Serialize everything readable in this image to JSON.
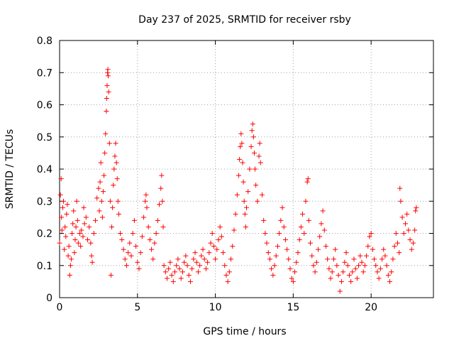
{
  "chart_data": {
    "type": "scatter",
    "title": "Day 237 of 2025, SRMTID for receiver rsby",
    "xlabel": "GPS time / hours",
    "ylabel": "SRMTID / TECUs",
    "xlim": [
      0,
      24
    ],
    "ylim": [
      0,
      0.8
    ],
    "xticks": [
      0,
      5,
      10,
      15,
      20
    ],
    "xtick_labels": [
      "0",
      "5",
      "10",
      "15",
      "20"
    ],
    "yticks": [
      0,
      0.1,
      0.2,
      0.3,
      0.4,
      0.5,
      0.6,
      0.7,
      0.8
    ],
    "ytick_labels": [
      "0",
      "0.1",
      "0.2",
      "0.3",
      "0.4",
      "0.5",
      "0.6",
      "0.7",
      "0.8"
    ],
    "grid": true,
    "marker": "+",
    "color": "#ff0000",
    "points": [
      [
        0.0,
        0.17
      ],
      [
        0.05,
        0.32
      ],
      [
        0.1,
        0.37
      ],
      [
        0.12,
        0.25
      ],
      [
        0.15,
        0.21
      ],
      [
        0.2,
        0.28
      ],
      [
        0.25,
        0.3
      ],
      [
        0.3,
        0.15
      ],
      [
        0.35,
        0.22
      ],
      [
        0.4,
        0.19
      ],
      [
        0.45,
        0.26
      ],
      [
        0.5,
        0.29
      ],
      [
        0.55,
        0.13
      ],
      [
        0.6,
        0.16
      ],
      [
        0.65,
        0.07
      ],
      [
        0.7,
        0.1
      ],
      [
        0.75,
        0.12
      ],
      [
        0.8,
        0.2
      ],
      [
        0.85,
        0.23
      ],
      [
        0.9,
        0.27
      ],
      [
        0.95,
        0.14
      ],
      [
        1.0,
        0.18
      ],
      [
        1.05,
        0.22
      ],
      [
        1.1,
        0.3
      ],
      [
        1.15,
        0.24
      ],
      [
        1.2,
        0.17
      ],
      [
        1.3,
        0.2
      ],
      [
        1.35,
        0.16
      ],
      [
        1.4,
        0.21
      ],
      [
        1.5,
        0.19
      ],
      [
        1.55,
        0.28
      ],
      [
        1.6,
        0.23
      ],
      [
        1.7,
        0.25
      ],
      [
        1.8,
        0.18
      ],
      [
        1.9,
        0.22
      ],
      [
        2.0,
        0.17
      ],
      [
        2.05,
        0.13
      ],
      [
        2.1,
        0.11
      ],
      [
        2.2,
        0.2
      ],
      [
        2.3,
        0.24
      ],
      [
        2.4,
        0.31
      ],
      [
        2.5,
        0.34
      ],
      [
        2.55,
        0.27
      ],
      [
        2.6,
        0.36
      ],
      [
        2.65,
        0.42
      ],
      [
        2.7,
        0.3
      ],
      [
        2.75,
        0.25
      ],
      [
        2.8,
        0.33
      ],
      [
        2.85,
        0.38
      ],
      [
        2.9,
        0.45
      ],
      [
        2.95,
        0.51
      ],
      [
        3.0,
        0.58
      ],
      [
        3.02,
        0.62
      ],
      [
        3.05,
        0.66
      ],
      [
        3.08,
        0.7
      ],
      [
        3.1,
        0.71
      ],
      [
        3.12,
        0.69
      ],
      [
        3.15,
        0.64
      ],
      [
        3.2,
        0.48
      ],
      [
        3.25,
        0.3
      ],
      [
        3.3,
        0.07
      ],
      [
        3.35,
        0.22
      ],
      [
        3.4,
        0.28
      ],
      [
        3.45,
        0.35
      ],
      [
        3.5,
        0.4
      ],
      [
        3.55,
        0.44
      ],
      [
        3.6,
        0.48
      ],
      [
        3.65,
        0.42
      ],
      [
        3.7,
        0.37
      ],
      [
        3.75,
        0.3
      ],
      [
        3.8,
        0.26
      ],
      [
        3.9,
        0.2
      ],
      [
        4.0,
        0.18
      ],
      [
        4.1,
        0.15
      ],
      [
        4.2,
        0.12
      ],
      [
        4.3,
        0.1
      ],
      [
        4.4,
        0.14
      ],
      [
        4.5,
        0.17
      ],
      [
        4.6,
        0.13
      ],
      [
        4.7,
        0.2
      ],
      [
        4.8,
        0.24
      ],
      [
        4.9,
        0.16
      ],
      [
        5.0,
        0.11
      ],
      [
        5.1,
        0.09
      ],
      [
        5.2,
        0.14
      ],
      [
        5.3,
        0.19
      ],
      [
        5.4,
        0.25
      ],
      [
        5.5,
        0.3
      ],
      [
        5.55,
        0.32
      ],
      [
        5.6,
        0.28
      ],
      [
        5.7,
        0.22
      ],
      [
        5.8,
        0.18
      ],
      [
        5.9,
        0.15
      ],
      [
        6.0,
        0.12
      ],
      [
        6.1,
        0.17
      ],
      [
        6.2,
        0.2
      ],
      [
        6.3,
        0.24
      ],
      [
        6.4,
        0.29
      ],
      [
        6.5,
        0.34
      ],
      [
        6.55,
        0.38
      ],
      [
        6.6,
        0.3
      ],
      [
        6.65,
        0.22
      ],
      [
        6.7,
        0.1
      ],
      [
        6.8,
        0.08
      ],
      [
        6.9,
        0.06
      ],
      [
        7.0,
        0.09
      ],
      [
        7.1,
        0.11
      ],
      [
        7.2,
        0.07
      ],
      [
        7.3,
        0.05
      ],
      [
        7.4,
        0.08
      ],
      [
        7.5,
        0.1
      ],
      [
        7.6,
        0.12
      ],
      [
        7.7,
        0.09
      ],
      [
        7.8,
        0.06
      ],
      [
        7.9,
        0.08
      ],
      [
        8.0,
        0.11
      ],
      [
        8.1,
        0.13
      ],
      [
        8.2,
        0.1
      ],
      [
        8.3,
        0.07
      ],
      [
        8.4,
        0.05
      ],
      [
        8.5,
        0.09
      ],
      [
        8.6,
        0.12
      ],
      [
        8.7,
        0.14
      ],
      [
        8.8,
        0.11
      ],
      [
        8.9,
        0.08
      ],
      [
        9.0,
        0.1
      ],
      [
        9.1,
        0.13
      ],
      [
        9.2,
        0.15
      ],
      [
        9.3,
        0.12
      ],
      [
        9.4,
        0.09
      ],
      [
        9.5,
        0.11
      ],
      [
        9.6,
        0.14
      ],
      [
        9.7,
        0.17
      ],
      [
        9.8,
        0.2
      ],
      [
        9.9,
        0.16
      ],
      [
        10.0,
        0.12
      ],
      [
        10.1,
        0.15
      ],
      [
        10.2,
        0.18
      ],
      [
        10.3,
        0.22
      ],
      [
        10.4,
        0.19
      ],
      [
        10.5,
        0.14
      ],
      [
        10.6,
        0.1
      ],
      [
        10.7,
        0.07
      ],
      [
        10.8,
        0.05
      ],
      [
        10.9,
        0.08
      ],
      [
        11.0,
        0.12
      ],
      [
        11.1,
        0.16
      ],
      [
        11.2,
        0.21
      ],
      [
        11.3,
        0.26
      ],
      [
        11.4,
        0.32
      ],
      [
        11.5,
        0.38
      ],
      [
        11.55,
        0.43
      ],
      [
        11.6,
        0.47
      ],
      [
        11.65,
        0.51
      ],
      [
        11.7,
        0.48
      ],
      [
        11.75,
        0.42
      ],
      [
        11.8,
        0.36
      ],
      [
        11.85,
        0.3
      ],
      [
        11.9,
        0.26
      ],
      [
        11.95,
        0.22
      ],
      [
        12.0,
        0.28
      ],
      [
        12.1,
        0.33
      ],
      [
        12.2,
        0.4
      ],
      [
        12.3,
        0.47
      ],
      [
        12.35,
        0.52
      ],
      [
        12.4,
        0.54
      ],
      [
        12.45,
        0.5
      ],
      [
        12.5,
        0.45
      ],
      [
        12.55,
        0.4
      ],
      [
        12.6,
        0.35
      ],
      [
        12.7,
        0.3
      ],
      [
        12.8,
        0.44
      ],
      [
        12.85,
        0.48
      ],
      [
        12.9,
        0.42
      ],
      [
        13.0,
        0.32
      ],
      [
        13.1,
        0.24
      ],
      [
        13.2,
        0.2
      ],
      [
        13.3,
        0.17
      ],
      [
        13.4,
        0.14
      ],
      [
        13.5,
        0.12
      ],
      [
        13.6,
        0.09
      ],
      [
        13.7,
        0.07
      ],
      [
        13.8,
        0.1
      ],
      [
        13.9,
        0.13
      ],
      [
        14.0,
        0.16
      ],
      [
        14.1,
        0.2
      ],
      [
        14.2,
        0.24
      ],
      [
        14.3,
        0.28
      ],
      [
        14.4,
        0.22
      ],
      [
        14.5,
        0.18
      ],
      [
        14.6,
        0.15
      ],
      [
        14.7,
        0.12
      ],
      [
        14.8,
        0.09
      ],
      [
        14.9,
        0.06
      ],
      [
        15.0,
        0.05
      ],
      [
        15.1,
        0.08
      ],
      [
        15.2,
        0.11
      ],
      [
        15.3,
        0.14
      ],
      [
        15.4,
        0.18
      ],
      [
        15.5,
        0.22
      ],
      [
        15.6,
        0.26
      ],
      [
        15.7,
        0.2
      ],
      [
        15.8,
        0.3
      ],
      [
        15.9,
        0.36
      ],
      [
        15.95,
        0.37
      ],
      [
        16.0,
        0.24
      ],
      [
        16.1,
        0.17
      ],
      [
        16.2,
        0.13
      ],
      [
        16.3,
        0.1
      ],
      [
        16.4,
        0.08
      ],
      [
        16.5,
        0.11
      ],
      [
        16.6,
        0.15
      ],
      [
        16.7,
        0.19
      ],
      [
        16.8,
        0.23
      ],
      [
        16.9,
        0.27
      ],
      [
        17.0,
        0.21
      ],
      [
        17.1,
        0.16
      ],
      [
        17.2,
        0.12
      ],
      [
        17.3,
        0.09
      ],
      [
        17.4,
        0.06
      ],
      [
        17.5,
        0.08
      ],
      [
        17.6,
        0.12
      ],
      [
        17.7,
        0.15
      ],
      [
        17.8,
        0.1
      ],
      [
        17.9,
        0.07
      ],
      [
        18.0,
        0.02
      ],
      [
        18.1,
        0.05
      ],
      [
        18.2,
        0.08
      ],
      [
        18.3,
        0.11
      ],
      [
        18.4,
        0.14
      ],
      [
        18.5,
        0.1
      ],
      [
        18.6,
        0.07
      ],
      [
        18.7,
        0.05
      ],
      [
        18.8,
        0.08
      ],
      [
        18.9,
        0.12
      ],
      [
        19.0,
        0.09
      ],
      [
        19.1,
        0.06
      ],
      [
        19.2,
        0.1
      ],
      [
        19.3,
        0.13
      ],
      [
        19.4,
        0.11
      ],
      [
        19.5,
        0.08
      ],
      [
        19.6,
        0.1
      ],
      [
        19.7,
        0.13
      ],
      [
        19.8,
        0.16
      ],
      [
        19.9,
        0.19
      ],
      [
        20.0,
        0.2
      ],
      [
        20.1,
        0.15
      ],
      [
        20.2,
        0.12
      ],
      [
        20.3,
        0.1
      ],
      [
        20.4,
        0.08
      ],
      [
        20.5,
        0.06
      ],
      [
        20.6,
        0.09
      ],
      [
        20.7,
        0.12
      ],
      [
        20.8,
        0.15
      ],
      [
        20.9,
        0.13
      ],
      [
        21.0,
        0.1
      ],
      [
        21.1,
        0.07
      ],
      [
        21.2,
        0.05
      ],
      [
        21.3,
        0.08
      ],
      [
        21.4,
        0.12
      ],
      [
        21.5,
        0.16
      ],
      [
        21.6,
        0.2
      ],
      [
        21.7,
        0.17
      ],
      [
        21.8,
        0.14
      ],
      [
        21.85,
        0.34
      ],
      [
        21.9,
        0.3
      ],
      [
        22.0,
        0.25
      ],
      [
        22.1,
        0.2
      ],
      [
        22.2,
        0.23
      ],
      [
        22.3,
        0.26
      ],
      [
        22.4,
        0.21
      ],
      [
        22.5,
        0.18
      ],
      [
        22.6,
        0.15
      ],
      [
        22.7,
        0.17
      ],
      [
        22.8,
        0.21
      ],
      [
        22.85,
        0.27
      ],
      [
        22.9,
        0.28
      ]
    ]
  }
}
